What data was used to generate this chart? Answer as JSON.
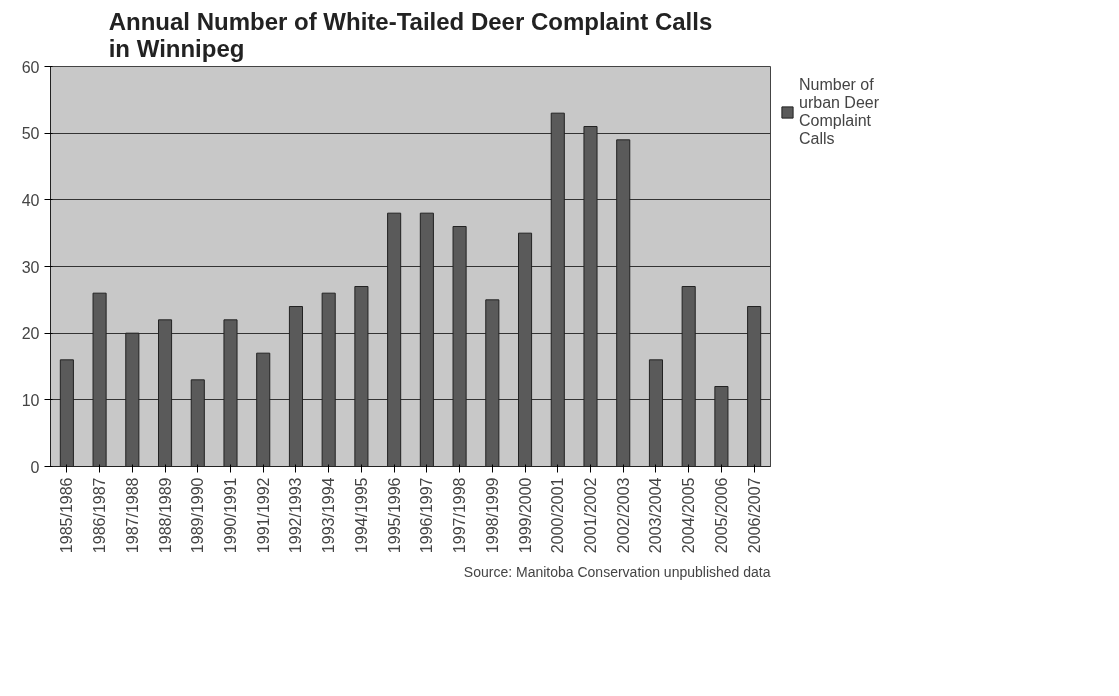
{
  "chart_data": {
    "type": "bar",
    "title": "Annual Number of White-Tailed Deer Complaint Calls in Winnipeg",
    "categories": [
      "1985/1986",
      "1986/1987",
      "1987/1988",
      "1988/1989",
      "1989/1990",
      "1990/1991",
      "1991/1992",
      "1992/1993",
      "1993/1994",
      "1994/1995",
      "1995/1996",
      "1996/1997",
      "1997/1998",
      "1998/1999",
      "1999/2000",
      "2000/2001",
      "2001/2002",
      "2002/2003",
      "2003/2004",
      "2004/2005",
      "2005/2006",
      "2006/2007"
    ],
    "series": [
      {
        "name": "Number of urban Deer Complaint Calls",
        "color": "#5a5a5a",
        "values": [
          16,
          26,
          20,
          22,
          13,
          22,
          17,
          24,
          26,
          27,
          38,
          38,
          36,
          25,
          35,
          53,
          51,
          49,
          16,
          27,
          12,
          24
        ]
      }
    ],
    "ylim": [
      0,
      60
    ],
    "yticks": [
      0,
      10,
      20,
      30,
      40,
      50,
      60
    ],
    "grid": "y",
    "legend": "right",
    "annotations": [
      "Source: Manitoba Conservation unpublished data"
    ]
  }
}
